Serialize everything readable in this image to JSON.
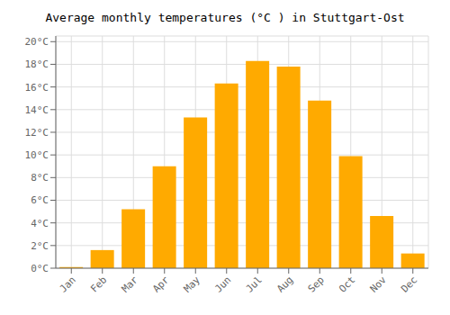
{
  "chart_data": {
    "type": "bar",
    "title": "Average monthly temperatures (°C ) in Stuttgart-Ost",
    "categories": [
      "Jan",
      "Feb",
      "Mar",
      "Apr",
      "May",
      "Jun",
      "Jul",
      "Aug",
      "Sep",
      "Oct",
      "Nov",
      "Dec"
    ],
    "values": [
      0.1,
      1.6,
      5.2,
      9.0,
      13.3,
      16.3,
      18.3,
      17.8,
      14.8,
      9.9,
      4.6,
      1.3
    ],
    "color": "#FFAA00",
    "ylim": [
      0,
      20.5
    ],
    "yticks": [
      {
        "value": 0,
        "label": "0°C"
      },
      {
        "value": 2,
        "label": "2°C"
      },
      {
        "value": 4,
        "label": "4°C"
      },
      {
        "value": 6,
        "label": "6°C"
      },
      {
        "value": 8,
        "label": "8°C"
      },
      {
        "value": 10,
        "label": "10°C"
      },
      {
        "value": 12,
        "label": "12°C"
      },
      {
        "value": 14,
        "label": "14°C"
      },
      {
        "value": 16,
        "label": "16°C"
      },
      {
        "value": 18,
        "label": "18°C"
      },
      {
        "value": 20,
        "label": "20°C"
      }
    ],
    "grid": true
  }
}
